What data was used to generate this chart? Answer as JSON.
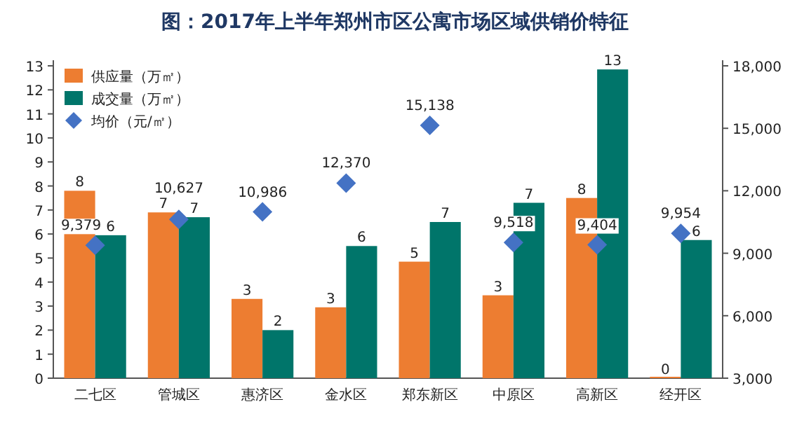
{
  "chart_data": {
    "type": "bar",
    "title": "图：2017年上半年郑州市区公寓市场区域供销价特征",
    "categories": [
      "二七区",
      "管城区",
      "惠济区",
      "金水区",
      "郑东新区",
      "中原区",
      "高新区",
      "经开区"
    ],
    "series": [
      {
        "name": "供应量（万㎡）",
        "color": "#ed7d31",
        "values": [
          7.8,
          6.9,
          3.3,
          2.95,
          4.85,
          3.45,
          7.5,
          0
        ],
        "value_labels": [
          "8",
          "7",
          "3",
          "3",
          "5",
          "3",
          "8",
          "0"
        ]
      },
      {
        "name": "成交量（万㎡）",
        "color": "#00756a",
        "values": [
          5.95,
          6.7,
          2.0,
          5.5,
          6.5,
          7.3,
          12.85,
          5.75
        ],
        "value_labels": [
          "6",
          "7",
          "2",
          "6",
          "7",
          "7",
          "13",
          "6"
        ]
      },
      {
        "name": "均价（元/㎡）",
        "type": "scatter",
        "axis": "y2",
        "marker": "diamond",
        "color": "#4472c4",
        "values": [
          9379,
          10627,
          10986,
          12370,
          15138,
          9518,
          9404,
          9954
        ],
        "value_labels": [
          "9,379",
          "10,627",
          "10,986",
          "12,370",
          "15,138",
          "9,518",
          "9,404",
          "9,954"
        ]
      }
    ],
    "ylim": [
      0,
      13
    ],
    "yticks": [
      0,
      1,
      2,
      3,
      4,
      5,
      6,
      7,
      8,
      9,
      10,
      11,
      12,
      13
    ],
    "y2lim": [
      3000,
      18000
    ],
    "y2ticks": [
      {
        "value": 3000,
        "label": "3,000"
      },
      {
        "value": 6000,
        "label": "6,000"
      },
      {
        "value": 9000,
        "label": "9,000"
      },
      {
        "value": 12000,
        "label": "12,000"
      },
      {
        "value": 15000,
        "label": "15,000"
      },
      {
        "value": 18000,
        "label": "18,000"
      }
    ],
    "legend": "top left",
    "grid": false
  }
}
